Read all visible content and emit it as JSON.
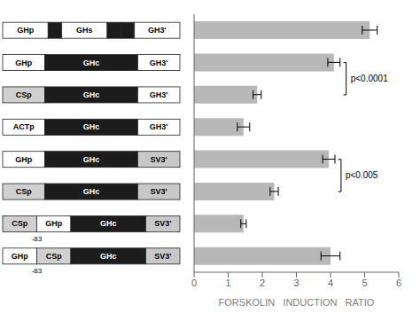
{
  "chart_data": {
    "type": "bar",
    "orientation": "horizontal",
    "categories": [
      null,
      null,
      null,
      null,
      null,
      null,
      null,
      null
    ],
    "values": [
      5.15,
      4.1,
      1.85,
      1.45,
      3.95,
      2.35,
      1.45,
      4.0
    ],
    "errors": [
      0.22,
      0.18,
      0.12,
      0.18,
      0.18,
      0.12,
      0.08,
      0.28
    ],
    "color": "#b8b8b8",
    "xlabel": "FORSKOLIN   INDUCTION   RATIO",
    "xlim": [
      0,
      6
    ],
    "xticks": [
      0,
      1,
      2,
      3,
      4,
      5,
      6
    ],
    "grid": false,
    "annotations": [
      {
        "text": "p<0.0001",
        "rows": [
          1,
          2
        ]
      },
      {
        "text": "p<0.005",
        "rows": [
          4,
          5
        ]
      }
    ],
    "constructs": [
      {
        "segments": [
          {
            "text": "GHp",
            "color": "#ffffff"
          },
          {
            "color": "#1c1c1c"
          },
          {
            "text": "GHs",
            "color": "#ffffff"
          },
          {
            "color": "#1c1c1c"
          },
          {
            "color": "#1c1c1c"
          },
          {
            "text": "GH3'",
            "color": "#ffffff"
          }
        ]
      },
      {
        "segments": [
          {
            "text": "GHp",
            "color": "#ffffff"
          },
          {
            "text": "GHc",
            "color": "#1c1c1c"
          },
          {
            "text": "GH3'",
            "color": "#ffffff"
          }
        ]
      },
      {
        "segments": [
          {
            "text": "CSp",
            "color": "#d0d0d0"
          },
          {
            "text": "GHc",
            "color": "#1c1c1c"
          },
          {
            "text": "GH3'",
            "color": "#ffffff"
          }
        ]
      },
      {
        "segments": [
          {
            "text": "ACTp",
            "color": "#ffffff"
          },
          {
            "text": "GHc",
            "color": "#1c1c1c"
          },
          {
            "text": "GH3'",
            "color": "#ffffff"
          }
        ]
      },
      {
        "segments": [
          {
            "text": "GHp",
            "color": "#ffffff"
          },
          {
            "text": "GHc",
            "color": "#1c1c1c"
          },
          {
            "text": "SV3'",
            "color": "#c8c8c8"
          }
        ]
      },
      {
        "segments": [
          {
            "text": "CSp",
            "color": "#d0d0d0"
          },
          {
            "text": "GHc",
            "color": "#1c1c1c"
          },
          {
            "text": "SV3'",
            "color": "#c8c8c8"
          }
        ]
      },
      {
        "segments": [
          {
            "text": "CSp",
            "color": "#d0d0d0"
          },
          {
            "text": "GHp",
            "color": "#ffffff"
          },
          {
            "text": "GHc",
            "color": "#1c1c1c"
          },
          {
            "text": "SV3'",
            "color": "#c8c8c8"
          }
        ],
        "label_below": "-83"
      },
      {
        "segments": [
          {
            "text": "GHp",
            "color": "#ffffff"
          },
          {
            "text": "CSp",
            "color": "#d0d0d0"
          },
          {
            "text": "GHc",
            "color": "#1c1c1c"
          },
          {
            "text": "SV3'",
            "color": "#c8c8c8"
          }
        ],
        "label_below": "-83"
      }
    ]
  }
}
